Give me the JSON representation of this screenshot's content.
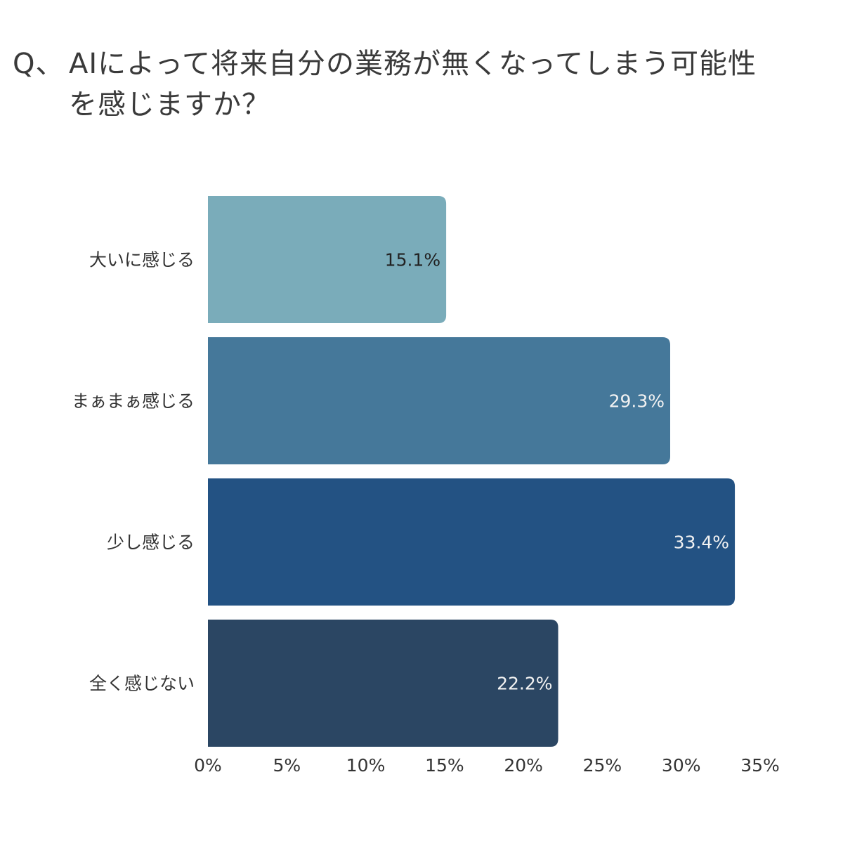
{
  "question": {
    "prefix": "Q、",
    "line1": "AIによって将来自分の業務が無くなってしまう可能性",
    "line2": "を感じますか？"
  },
  "chart_data": {
    "type": "bar",
    "orientation": "horizontal",
    "categories": [
      "大いに感じる",
      "まぁまぁ感じる",
      "少し感じる",
      "全く感じない"
    ],
    "values": [
      15.1,
      29.3,
      33.4,
      22.2
    ],
    "value_labels": [
      "15.1%",
      "29.3%",
      "33.4%",
      "22.2%"
    ],
    "xlim": [
      0,
      35
    ],
    "xticks": [
      0,
      5,
      10,
      15,
      20,
      25,
      30,
      35
    ],
    "xtick_labels": [
      "0%",
      "5%",
      "10%",
      "15%",
      "20%",
      "25%",
      "30%",
      "35%"
    ],
    "grid": false,
    "bar_colors": [
      "#7aacba",
      "#45789a",
      "#235283",
      "#2b4663"
    ],
    "label_colors": [
      "#222222",
      "#f2f2f2",
      "#f2f2f2",
      "#f2f2f2"
    ]
  }
}
